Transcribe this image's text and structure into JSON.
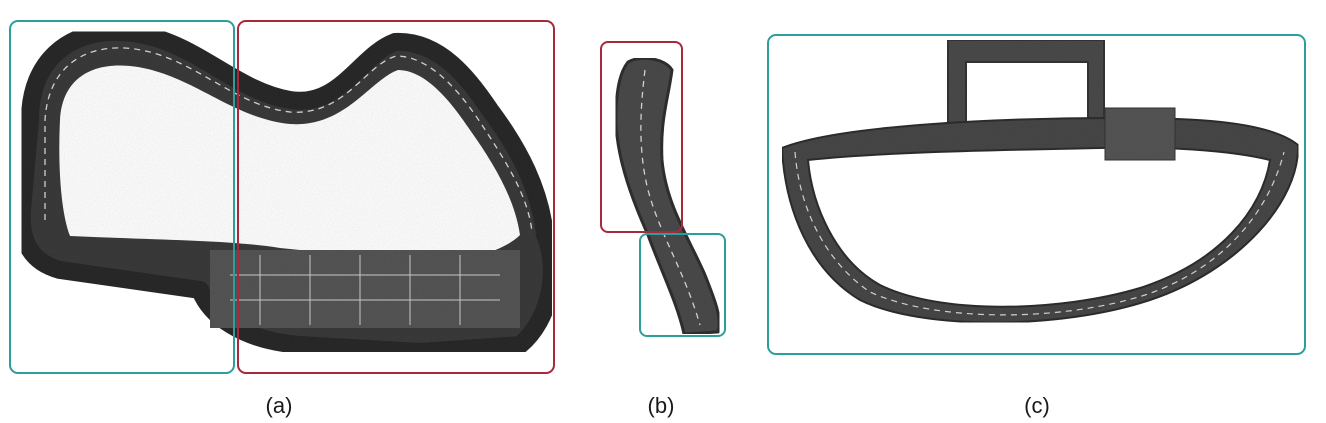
{
  "panels": [
    {
      "id": "a",
      "caption": "(a)"
    },
    {
      "id": "b",
      "caption": "(b)"
    },
    {
      "id": "c",
      "caption": "(c)"
    }
  ],
  "colors": {
    "teal_box": "#2e9e9a",
    "red_box": "#a52a3c",
    "asphalt": "#4a4a4a",
    "asphalt_dark": "#333333",
    "vegetation": "#3d3d3d",
    "lane_marking": "#d8d8d8",
    "background": "#ffffff"
  }
}
